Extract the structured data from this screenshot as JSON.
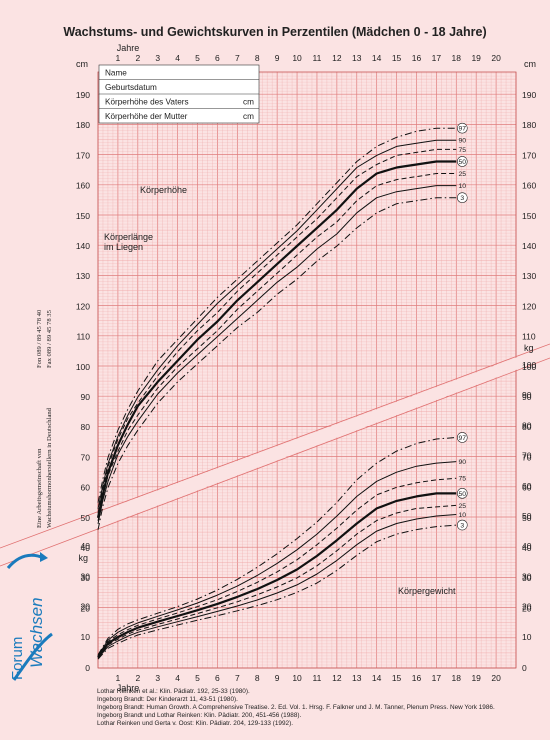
{
  "title": "Wachstums- und Gewichtskurven in Perzentilen (Mädchen 0 - 18 Jahre)",
  "axis_labels": {
    "years_top": "Jahre",
    "years_bottom": "Jahre",
    "unit_cm_left": "cm",
    "unit_cm_right": "cm",
    "unit_kg_left": "kg",
    "unit_kg_right": "kg"
  },
  "form_fields": [
    "Name",
    "Geburtsdatum",
    "Körperhöhe des Vaters",
    "Körperhöhe der Mutter"
  ],
  "form_units": [
    "",
    "",
    "cm",
    "cm"
  ],
  "section_labels": {
    "height": "Körperhöhe",
    "length_line1": "Körperlänge",
    "length_line2": "im Liegen",
    "weight": "Körpergewicht"
  },
  "side_text": {
    "org_line1": "Eine Arbeitsgemeinschaft von",
    "org_line2": "Wachstumshormonherstellern in Deutschland",
    "phone": "Fon 089 / 89 45 78 40",
    "fax": "Fax 089 / 89 45 78 35"
  },
  "logo": {
    "text1": "Forum",
    "text2": "Wachsen",
    "color": "#1a7bbd"
  },
  "references": [
    "Lothar Reinken et al.: Klin. Pädiatr. 192, 25-33 (1980).",
    "Ingeborg Brandt: Der Kinderarzt 11, 43-51 (1980).",
    "Ingeborg Brandt: Human Growth. A Comprehensive Treatise. 2. Ed. Vol. 1. Hrsg. F. Falkner und J. M. Tanner, Plenum Press. New York 1986.",
    "Ingeborg Brandt und Lothar Reinken: Klin. Pädiatr. 200, 451-456 (1988).",
    "Lothar Reinken und Gerta v. Oost: Klin. Pädiatr. 204, 129-133 (1992)."
  ],
  "colors": {
    "background": "#fbe3e3",
    "grid": "#efa8a8",
    "grid_major": "#e07c7c",
    "curve": "#111111"
  },
  "chart_data": [
    {
      "type": "line",
      "title": "Körperhöhe",
      "ylabel": "cm",
      "xlabel": "Jahre",
      "xlim": [
        0,
        21
      ],
      "ylim": [
        0,
        195
      ],
      "x_ticks": [
        1,
        2,
        3,
        4,
        5,
        6,
        7,
        8,
        9,
        10,
        11,
        12,
        13,
        14,
        15,
        16,
        17,
        18,
        19,
        20
      ],
      "y_ticks_left": [
        20,
        30,
        40,
        50,
        60,
        70,
        80,
        90,
        100,
        110,
        120,
        130,
        140,
        150,
        160,
        170,
        180,
        190
      ],
      "y_ticks_right": [
        20,
        30,
        40,
        50,
        60,
        70,
        80,
        90,
        100,
        110,
        120,
        130,
        140,
        150,
        160,
        170,
        180,
        190
      ],
      "x": [
        0,
        0.25,
        0.5,
        1,
        1.5,
        2,
        3,
        4,
        5,
        6,
        7,
        8,
        9,
        10,
        11,
        12,
        13,
        14,
        15,
        16,
        17,
        18
      ],
      "series": [
        {
          "name": "97",
          "style": "dashdot",
          "values": [
            55,
            63,
            70,
            79,
            86,
            92,
            102,
            109,
            116,
            123,
            129,
            135,
            141,
            147,
            154,
            161,
            168,
            173,
            176,
            178,
            179,
            179
          ]
        },
        {
          "name": "90",
          "style": "solid",
          "values": [
            53,
            61,
            68,
            77,
            84,
            90,
            99,
            107,
            114,
            121,
            127,
            133,
            139,
            145,
            152,
            159,
            166,
            170,
            173,
            174,
            175,
            175
          ]
        },
        {
          "name": "75",
          "style": "dashed",
          "values": [
            51.5,
            60,
            67,
            76,
            83,
            88,
            97,
            105,
            112,
            118,
            125,
            131,
            137,
            143,
            149,
            156,
            163,
            167,
            170,
            171,
            172,
            172
          ]
        },
        {
          "name": "50",
          "style": "bold",
          "values": [
            50,
            58,
            65,
            74,
            81,
            87,
            95,
            102,
            109,
            115,
            122,
            128,
            134,
            140,
            146,
            152,
            159,
            164,
            166,
            167,
            168,
            168
          ]
        },
        {
          "name": "25",
          "style": "dashed",
          "values": [
            49,
            57,
            64,
            72,
            79,
            84,
            93,
            100,
            106,
            112,
            119,
            125,
            131,
            137,
            143,
            148,
            155,
            160,
            162,
            163,
            164,
            164
          ]
        },
        {
          "name": "10",
          "style": "solid",
          "values": [
            48,
            56,
            62,
            71,
            77,
            82,
            91,
            98,
            104,
            110,
            116,
            122,
            128,
            133,
            139,
            144,
            151,
            156,
            158,
            159,
            160,
            160
          ]
        },
        {
          "name": "3",
          "style": "dashdot",
          "values": [
            46,
            54,
            60,
            68,
            74,
            79,
            88,
            95,
            101,
            107,
            113,
            118,
            124,
            129,
            135,
            140,
            146,
            151,
            154,
            155,
            156,
            156
          ]
        }
      ],
      "circled_labels": [
        "97",
        "50",
        "3"
      ]
    },
    {
      "type": "line",
      "title": "Körpergewicht",
      "ylabel": "kg",
      "xlabel": "Jahre",
      "xlim": [
        0,
        21
      ],
      "ylim": [
        0,
        105
      ],
      "y_ticks_left": [
        10,
        20,
        30,
        40
      ],
      "y_ticks_right": [
        10,
        20,
        30,
        40,
        50,
        60,
        70,
        80,
        90,
        100
      ],
      "x": [
        0,
        0.5,
        1,
        1.5,
        2,
        3,
        4,
        5,
        6,
        7,
        8,
        9,
        10,
        11,
        12,
        13,
        14,
        15,
        16,
        17,
        18
      ],
      "series": [
        {
          "name": "97",
          "style": "dashdot",
          "values": [
            4.0,
            9.5,
            12.5,
            14.3,
            15.6,
            17.8,
            20.0,
            22.5,
            25.5,
            29.0,
            33.0,
            37.5,
            42.5,
            48.0,
            54.5,
            62.0,
            67.5,
            71.5,
            74.0,
            75.5,
            76.0
          ]
        },
        {
          "name": "90",
          "style": "solid",
          "values": [
            3.7,
            8.9,
            11.5,
            13.2,
            14.6,
            16.8,
            18.9,
            21.2,
            23.8,
            26.8,
            30.3,
            34.3,
            38.8,
            44.0,
            50.0,
            56.5,
            61.5,
            64.5,
            66.5,
            67.5,
            68.0
          ]
        },
        {
          "name": "75",
          "style": "dashed",
          "values": [
            3.5,
            8.4,
            10.7,
            12.4,
            13.8,
            15.9,
            17.9,
            20.0,
            22.3,
            25.0,
            28.0,
            31.5,
            35.5,
            40.5,
            46.0,
            52.0,
            57.0,
            59.5,
            61.0,
            62.0,
            62.5
          ]
        },
        {
          "name": "50",
          "style": "bold",
          "values": [
            3.3,
            7.8,
            9.9,
            11.6,
            13.0,
            15.0,
            16.9,
            18.8,
            20.9,
            23.2,
            25.8,
            28.8,
            32.3,
            36.8,
            42.0,
            47.5,
            52.5,
            55.0,
            56.5,
            57.5,
            57.5
          ]
        },
        {
          "name": "25",
          "style": "dashed",
          "values": [
            3.1,
            7.3,
            9.2,
            10.9,
            12.2,
            14.1,
            15.9,
            17.7,
            19.6,
            21.6,
            23.9,
            26.5,
            29.5,
            33.5,
            38.5,
            44.0,
            48.5,
            51.0,
            52.5,
            53.0,
            53.5
          ]
        },
        {
          "name": "10",
          "style": "solid",
          "values": [
            2.9,
            6.8,
            8.6,
            10.2,
            11.5,
            13.3,
            15.0,
            16.7,
            18.4,
            20.2,
            22.2,
            24.5,
            27.2,
            30.8,
            35.3,
            40.5,
            45.0,
            47.5,
            49.0,
            50.0,
            50.5
          ]
        },
        {
          "name": "3",
          "style": "dashdot",
          "values": [
            2.6,
            6.2,
            7.8,
            9.3,
            10.6,
            12.3,
            13.9,
            15.5,
            17.0,
            18.6,
            20.3,
            22.3,
            24.7,
            27.8,
            32.0,
            37.0,
            41.5,
            44.0,
            45.5,
            46.5,
            47.0
          ]
        }
      ],
      "circled_labels": [
        "97",
        "50",
        "3"
      ]
    }
  ]
}
